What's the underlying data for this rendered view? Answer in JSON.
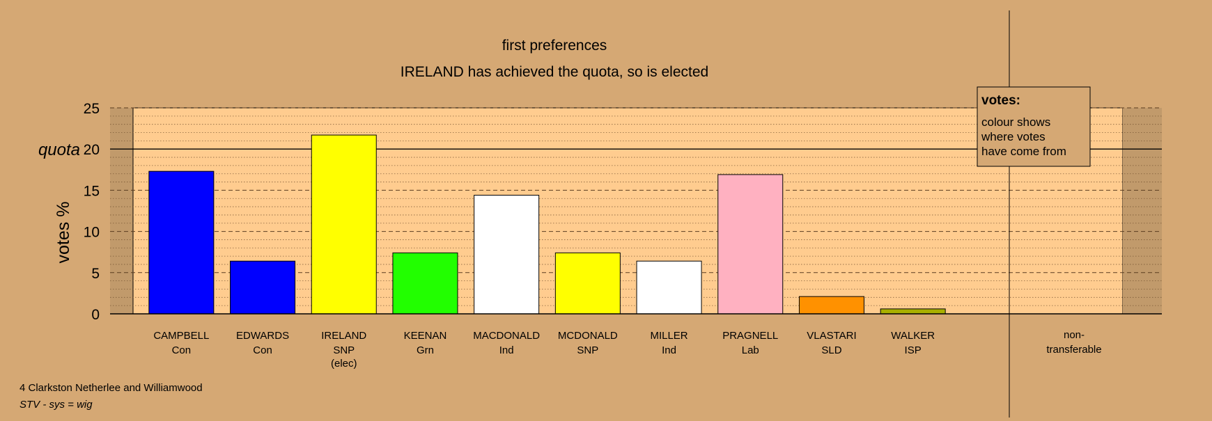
{
  "chart_data": {
    "type": "bar",
    "title": "first preferences",
    "subtitle": "IRELAND has achieved the quota, so is elected",
    "ylabel": "votes %",
    "ylim": [
      0,
      25
    ],
    "yticks": [
      0,
      5,
      10,
      15,
      20,
      25
    ],
    "quota": 20,
    "quota_label": "quota",
    "grid": true,
    "candidates": [
      {
        "name": "CAMPBELL",
        "party": "Con",
        "note": "",
        "value": 17.3,
        "color": "#0000FF"
      },
      {
        "name": "EDWARDS",
        "party": "Con",
        "note": "",
        "value": 6.4,
        "color": "#0000FF"
      },
      {
        "name": "IRELAND",
        "party": "SNP",
        "note": "(elec)",
        "value": 21.7,
        "color": "#FFFF00"
      },
      {
        "name": "KEENAN",
        "party": "Grn",
        "note": "",
        "value": 7.4,
        "color": "#22FF00"
      },
      {
        "name": "MACDONALD",
        "party": "Ind",
        "note": "",
        "value": 14.4,
        "color": "#FFFFFF"
      },
      {
        "name": "MCDONALD",
        "party": "SNP",
        "note": "",
        "value": 7.4,
        "color": "#FFFF00"
      },
      {
        "name": "MILLER",
        "party": "Ind",
        "note": "",
        "value": 6.4,
        "color": "#FFFFFF"
      },
      {
        "name": "PRAGNELL",
        "party": "Lab",
        "note": "",
        "value": 16.9,
        "color": "#FFB1C1"
      },
      {
        "name": "VLASTARI",
        "party": "SLD",
        "note": "",
        "value": 2.1,
        "color": "#FF9100"
      },
      {
        "name": "WALKER",
        "party": "ISP",
        "note": "",
        "value": 0.6,
        "color": "#A9B000"
      }
    ],
    "nontransferable": {
      "label_line1": "non-",
      "label_line2": "transferable",
      "value": 0
    }
  },
  "legend": {
    "title": "votes:",
    "lines": [
      "colour shows",
      "where votes",
      "have come from"
    ]
  },
  "footer": {
    "district": "4 Clarkston Netherlee and Williamwood",
    "system": "STV - sys = wig"
  },
  "colors": {
    "background": "#D5A874",
    "plot_band": "#FFCC8F",
    "edge_band": "#C19A6B"
  }
}
